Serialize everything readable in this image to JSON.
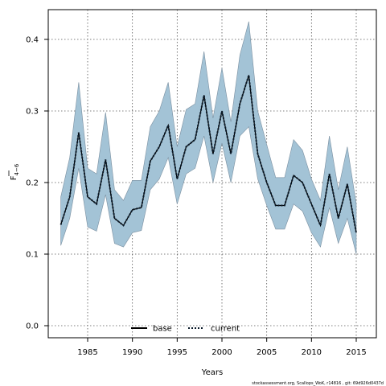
{
  "chart_data": {
    "type": "line",
    "xlabel": "Years",
    "ylabel": "F",
    "ylabel_sub": "4−6",
    "xlim": [
      1981.2,
      1983.2
    ],
    "ylim": [
      -0.015,
      0.44
    ],
    "x_ticks": [
      1985,
      1990,
      1995,
      2000,
      2005,
      2010,
      2015
    ],
    "y_ticks": [
      0.0,
      0.1,
      0.2,
      0.3,
      0.4
    ],
    "x_tick_labels": [
      "1985",
      "1990",
      "1995",
      "2000",
      "2005",
      "2010",
      "2015"
    ],
    "y_tick_labels": [
      "0.0",
      "0.1",
      "0.2",
      "0.3",
      "0.4"
    ],
    "grid": true,
    "legend_position": "bottom-center",
    "colors": {
      "band": "#a3c3d6",
      "band_edge": "#7a8fa0",
      "line": "#000000"
    },
    "x": [
      1982,
      1983,
      1984,
      1985,
      1986,
      1987,
      1988,
      1989,
      1990,
      1991,
      1992,
      1993,
      1994,
      1995,
      1996,
      1997,
      1998,
      1999,
      2000,
      2001,
      2002,
      2003,
      2004,
      2005,
      2006,
      2007,
      2008,
      2009,
      2010,
      2011,
      2012,
      2013,
      2014,
      2015
    ],
    "series": [
      {
        "name": "base",
        "style": "solid",
        "values": [
          0.141,
          0.18,
          0.27,
          0.18,
          0.17,
          0.232,
          0.15,
          0.14,
          0.162,
          0.165,
          0.23,
          0.25,
          0.28,
          0.205,
          0.25,
          0.26,
          0.322,
          0.24,
          0.3,
          0.24,
          0.31,
          0.35,
          0.24,
          0.2,
          0.168,
          0.168,
          0.21,
          0.2,
          0.17,
          0.14,
          0.212,
          0.15,
          0.198,
          0.13
        ]
      },
      {
        "name": "current",
        "style": "dotted",
        "values": [
          0.141,
          0.18,
          0.27,
          0.18,
          0.17,
          0.232,
          0.15,
          0.14,
          0.162,
          0.165,
          0.23,
          0.25,
          0.28,
          0.205,
          0.25,
          0.26,
          0.322,
          0.24,
          0.3,
          0.24,
          0.31,
          0.35,
          0.24,
          0.2,
          0.168,
          0.168,
          0.21,
          0.2,
          0.17,
          0.14,
          0.212,
          0.15,
          0.198,
          0.13
        ]
      }
    ],
    "band": {
      "lower": [
        0.112,
        0.15,
        0.22,
        0.138,
        0.132,
        0.183,
        0.115,
        0.11,
        0.13,
        0.133,
        0.19,
        0.205,
        0.235,
        0.17,
        0.212,
        0.22,
        0.265,
        0.2,
        0.255,
        0.2,
        0.265,
        0.278,
        0.205,
        0.168,
        0.135,
        0.135,
        0.17,
        0.16,
        0.13,
        0.11,
        0.165,
        0.115,
        0.15,
        0.1
      ],
      "upper": [
        0.18,
        0.235,
        0.34,
        0.22,
        0.212,
        0.298,
        0.19,
        0.175,
        0.203,
        0.203,
        0.278,
        0.3,
        0.34,
        0.25,
        0.302,
        0.31,
        0.383,
        0.29,
        0.36,
        0.285,
        0.378,
        0.425,
        0.3,
        0.253,
        0.207,
        0.207,
        0.26,
        0.245,
        0.205,
        0.175,
        0.265,
        0.19,
        0.25,
        0.17
      ]
    },
    "footer": "stockassessment.org, Scallops_WoK, r14816 , git: 69d926d0437d"
  }
}
